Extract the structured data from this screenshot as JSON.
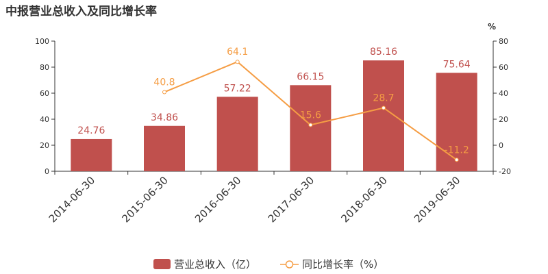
{
  "chart_data": {
    "type": "bar",
    "title": "中报营业总收入及同比增长率",
    "categories": [
      "2014-06-30",
      "2015-06-30",
      "2016-06-30",
      "2017-06-30",
      "2018-06-30",
      "2019-06-30"
    ],
    "series": [
      {
        "name": "营业总收入（亿）",
        "type": "bar",
        "axis": "left",
        "color": "#c0504d",
        "values": [
          24.76,
          34.86,
          57.22,
          66.15,
          85.16,
          75.64
        ],
        "labels": [
          "24.76",
          "34.86",
          "57.22",
          "66.15",
          "85.16",
          "75.64"
        ]
      },
      {
        "name": "同比增长率（%）",
        "type": "line",
        "axis": "right",
        "color": "#f59d44",
        "values": [
          null,
          40.8,
          64.1,
          15.6,
          28.7,
          -11.2
        ],
        "labels": [
          "",
          "40.8",
          "64.1",
          "15.6",
          "28.7",
          "-11.2"
        ]
      }
    ],
    "y_left": {
      "min": 0,
      "max": 100,
      "ticks": [
        0,
        20,
        40,
        60,
        80,
        100
      ]
    },
    "y_right": {
      "min": -20,
      "max": 80,
      "ticks": [
        -20,
        0,
        20,
        40,
        60,
        80
      ],
      "unit": "%"
    },
    "grid": false,
    "legend_position": "bottom"
  }
}
